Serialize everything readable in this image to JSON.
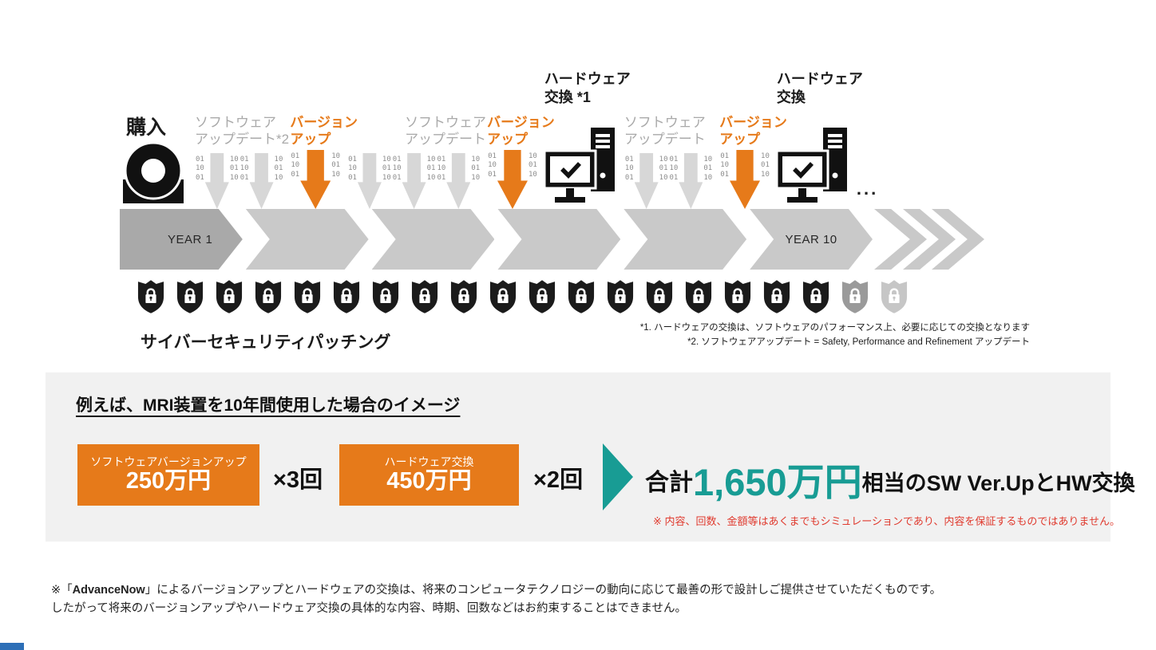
{
  "colors": {
    "accent_orange": "#e67a1a",
    "accent_teal": "#189c94",
    "note_red": "#e03a2e",
    "label_gray": "#a9a9a9",
    "shield_black": "#1b1b1b",
    "shield_faded": [
      "#9a9a9a",
      "#c6c6c6"
    ]
  },
  "timeline": {
    "purchase_label": "購入",
    "year_start": "YEAR 1",
    "year_end": "YEAR 10",
    "binary_left": "01\n10\n01",
    "binary_right": "10\n01\n10",
    "trailing_dots": "...",
    "events": [
      {
        "type": "sw-update",
        "label_line1": "ソフトウェア",
        "label_line2": "アップデート*2",
        "arrow_count": 2
      },
      {
        "type": "version-up",
        "label_line1": "バージョン",
        "label_line2": "アップ",
        "arrow_count": 1
      },
      {
        "type": "sw-update",
        "label_line1": "ソフトウェア",
        "label_line2": "アップデート",
        "arrow_count": 3
      },
      {
        "type": "version-up",
        "label_line1": "バージョン",
        "label_line2": "アップ",
        "arrow_count": 1
      },
      {
        "type": "hardware",
        "label_line1": "ハードウェア",
        "label_line2": "交換 *1"
      },
      {
        "type": "sw-update",
        "label_line1": "ソフトウェア",
        "label_line2": "アップデート",
        "arrow_count": 2
      },
      {
        "type": "version-up",
        "label_line1": "バージョン",
        "label_line2": "アップ",
        "arrow_count": 1
      },
      {
        "type": "hardware",
        "label_line1": "ハードウェア",
        "label_line2": "交換"
      },
      {
        "type": "dots"
      }
    ]
  },
  "security": {
    "label": "サイバーセキュリティパッチング",
    "shields_active": 18,
    "shields_faded": 2
  },
  "footnotes": [
    "*1. ハードウェアの交換は、ソフトウェアのパフォーマンス上、必要に応じての交換となります",
    "*2. ソフトウェアアップデート = Safety, Performance and Refinement アップデート"
  ],
  "example": {
    "heading": "例えば、MRI装置を10年間使用した場合のイメージ",
    "software_box": {
      "title": "ソフトウェアバージョンアップ",
      "amount": "250万円",
      "times": "×3回"
    },
    "hardware_box": {
      "title": "ハードウェア交換",
      "amount": "450万円",
      "times": "×2回"
    },
    "total_prefix": "合計",
    "total_amount": "1,650万円",
    "total_suffix": "相当のSW Ver.UpとHW交換",
    "disclaimer": "※ 内容、回数、金額等はあくまでもシミュレーションであり、内容を保証するものではありません。"
  },
  "notes": {
    "line1_prefix": "※「",
    "brand": "AdvanceNow",
    "line1_suffix": "」によるバージョンアップとハードウェアの交換は、将来のコンピュータテクノロジーの動向に応じて最善の形で設計しご提供させていただくものです。",
    "line2": "したがって将来のバージョンアップやハードウェア交換の具体的な内容、時期、回数などはお約束することはできません。"
  }
}
